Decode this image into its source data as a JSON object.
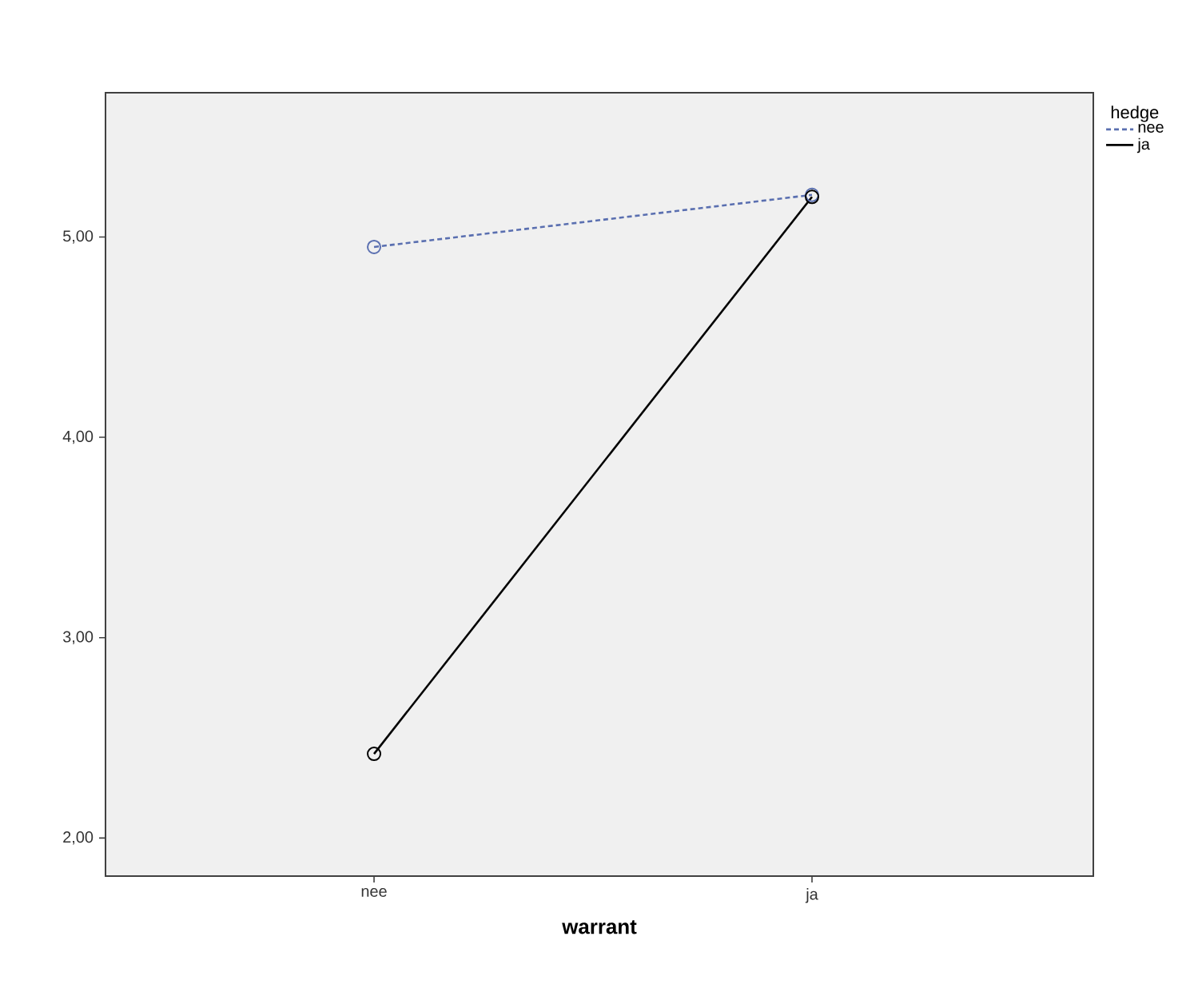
{
  "chart_data": {
    "type": "line",
    "xlabel": "warrant",
    "legend_title": "hedge",
    "categories": [
      "nee",
      "ja"
    ],
    "series": [
      {
        "name": "nee",
        "color": "#5a6fb0",
        "values": [
          4.95,
          5.21
        ],
        "line_style": "dashed"
      },
      {
        "name": "ja",
        "color": "#000000",
        "values": [
          2.42,
          5.2
        ],
        "line_style": "solid"
      }
    ],
    "ylim": [
      1.81,
      5.72
    ],
    "yticks": [
      {
        "value": 2,
        "label": "2,00"
      },
      {
        "value": 3,
        "label": "3,00"
      },
      {
        "value": 4,
        "label": "4,00"
      },
      {
        "value": 5,
        "label": "5,00"
      }
    ],
    "grid": false,
    "legend": "right",
    "marker": "circle"
  }
}
